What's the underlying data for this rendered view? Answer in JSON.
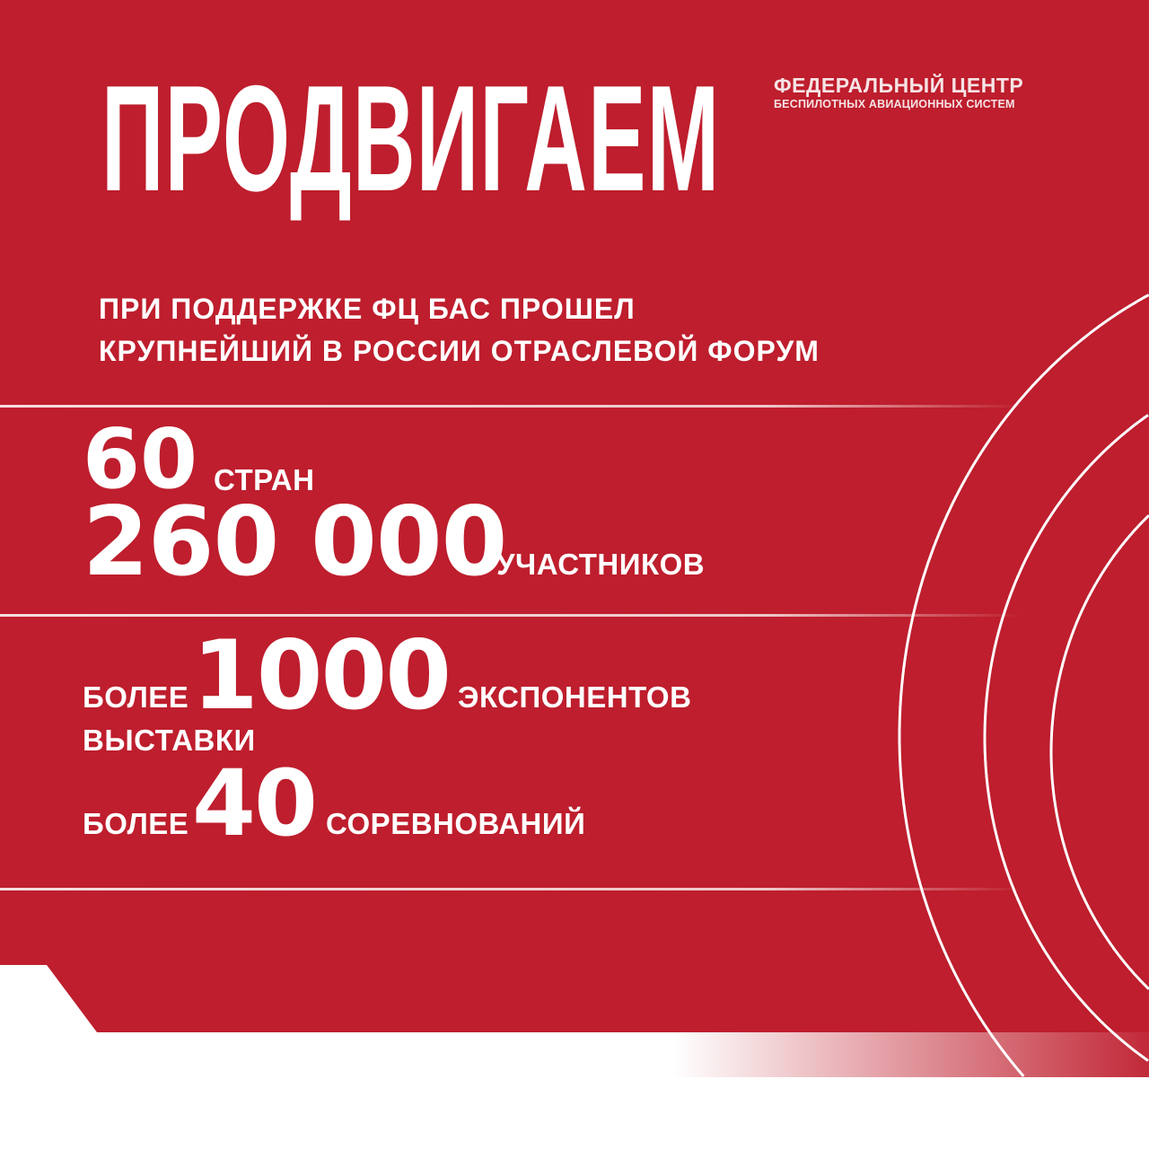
{
  "headline": "ПРОДВИГАЕМ",
  "logo": {
    "line1": "ФЕДЕРАЛЬНЫЙ ЦЕНТР",
    "line2": "БЕСПИЛОТНЫХ АВИАЦИОННЫХ СИСТЕМ"
  },
  "subtitle": {
    "line1": "ПРИ ПОДДЕРЖКЕ ФЦ БАС ПРОШЕЛ",
    "line2": "КРУПНЕЙШИЙ В РОССИИ ОТРАСЛЕВОЙ ФОРУМ"
  },
  "stats": {
    "countries": {
      "value": "60",
      "label": "СТРАН"
    },
    "participants": {
      "value": "260 000",
      "label": "УЧАСТНИКОВ"
    },
    "exhibitors": {
      "prefix": "БОЛЕЕ",
      "value": "1000",
      "label": "ЭКСПОНЕНТОВ",
      "label2": "ВЫСТАВКИ"
    },
    "competitions": {
      "prefix": "БОЛЕЕ",
      "value": "40",
      "label": "СОРЕВНОВАНИЙ"
    }
  },
  "colors": {
    "brand_red": "#be1e2d",
    "text": "#ffffff"
  }
}
